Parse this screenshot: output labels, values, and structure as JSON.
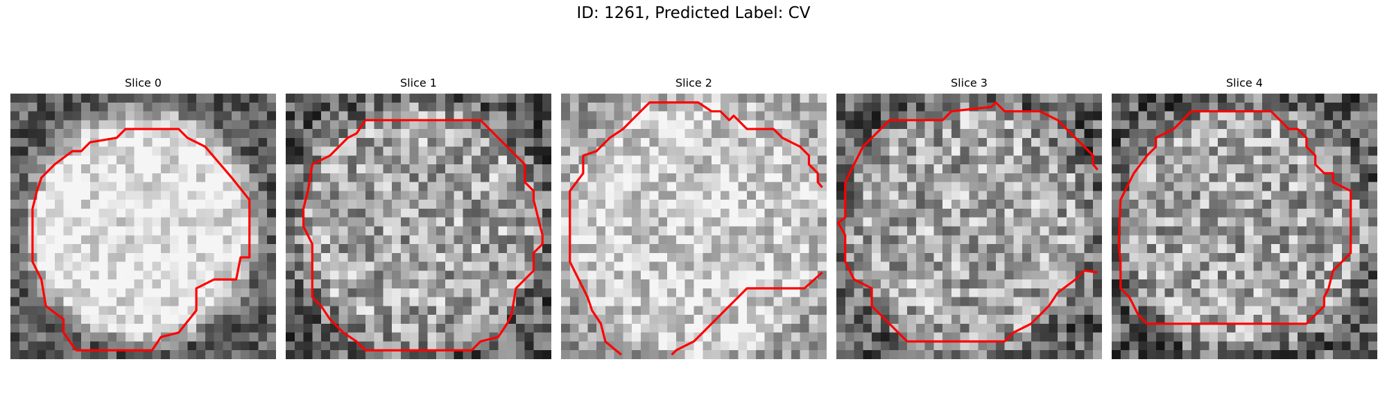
{
  "figure": {
    "title": "ID: 1261, Predicted Label: CV"
  },
  "panels": [
    {
      "title": "Slice 0",
      "seed": 11,
      "style": "bright"
    },
    {
      "title": "Slice 1",
      "seed": 23,
      "style": "mid"
    },
    {
      "title": "Slice 2",
      "seed": 37,
      "style": "light"
    },
    {
      "title": "Slice 3",
      "seed": 51,
      "style": "mid"
    },
    {
      "title": "Slice 4",
      "seed": 67,
      "style": "mid"
    }
  ],
  "colors": {
    "contour": "#ff0000",
    "background": "#ffffff"
  }
}
